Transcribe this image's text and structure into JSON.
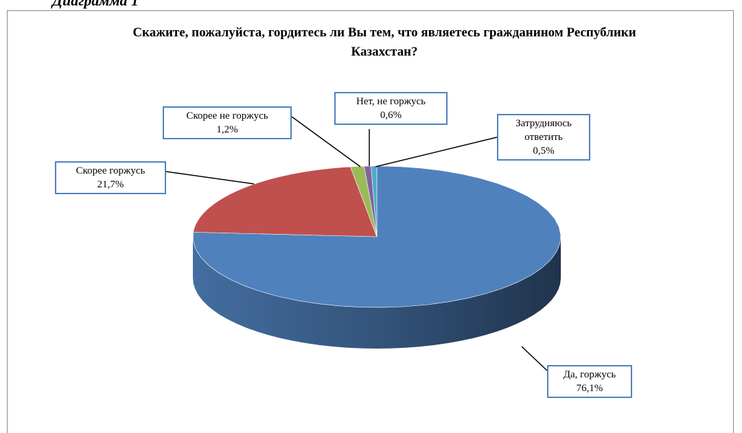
{
  "caption": "Диаграмма 1",
  "chart_data": {
    "type": "pie3d",
    "title": "Скажите, пожалуйста, гордитесь ли Вы тем, что являетесь гражданином Республики Казахстан?",
    "categories": [
      "Да, горжусь",
      "Скорее горжусь",
      "Скорее не горжусь",
      "Нет, не горжусь",
      "Затрудняюсь ответить"
    ],
    "values": [
      76.1,
      21.7,
      1.2,
      0.6,
      0.5
    ],
    "value_labels": [
      "76,1%",
      "21,7%",
      "1,2%",
      "0,6%",
      "0,5%"
    ],
    "colors": [
      "#4f81bd",
      "#c0504d",
      "#9bbb59",
      "#8064a2",
      "#4bacc6"
    ]
  }
}
